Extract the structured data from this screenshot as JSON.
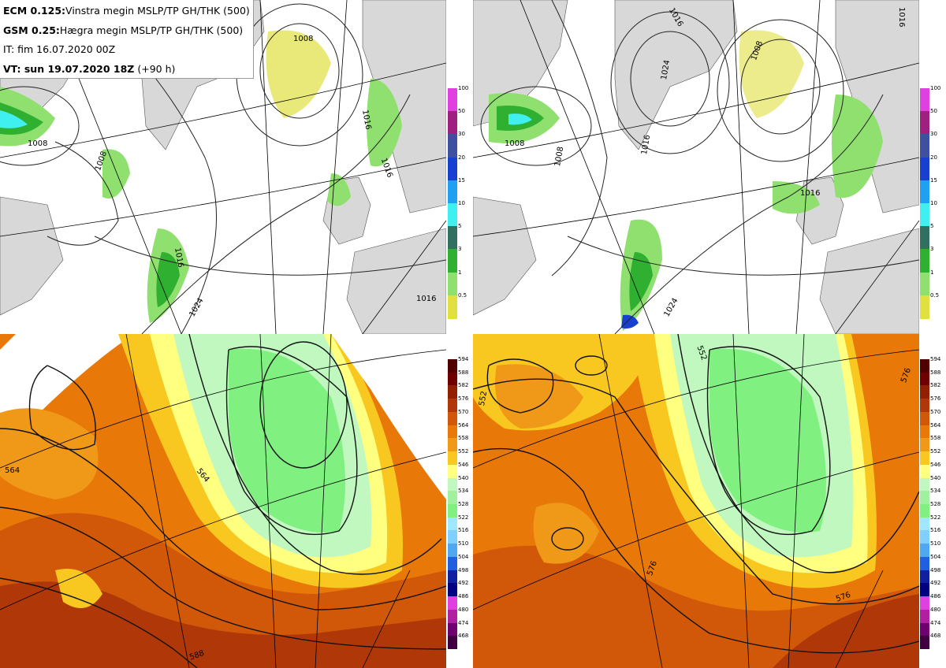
{
  "header": {
    "line1_bold": "ECM 0.125:",
    "line1_text": "Vinstra megin MSLP/TP GH/THK (500)",
    "line2_bold": "GSM 0.25:",
    "line2_text": "Hægra megin MSLP/TP GH/THK (500)",
    "line3_text": "IT: fim 16.07.2020 00Z",
    "line4_bold": "VT: sun 19.07.2020 18Z",
    "line4_text": "(+90 h)"
  },
  "precip_colorbar": {
    "labels": [
      "100",
      "50",
      "30",
      "20",
      "15",
      "10",
      "5",
      "3",
      "1",
      "0.5"
    ],
    "colors": [
      "#e040e0",
      "#a02080",
      "#4050a0",
      "#1840d0",
      "#20a0f0",
      "#40f0f0",
      "#307060",
      "#30b030",
      "#90e070",
      "#e0e040"
    ]
  },
  "thickness_colorbar": {
    "labels": [
      "594",
      "588",
      "582",
      "576",
      "570",
      "564",
      "558",
      "552",
      "546",
      "540",
      "534",
      "528",
      "522",
      "516",
      "510",
      "504",
      "498",
      "492",
      "486",
      "480",
      "474",
      "468"
    ],
    "colors": [
      "#500000",
      "#700000",
      "#902000",
      "#b03808",
      "#d05808",
      "#e87808",
      "#f09818",
      "#f8c820",
      "#ffff80",
      "#c0f8c0",
      "#a0f0a0",
      "#80f080",
      "#a0e8ff",
      "#80d0ff",
      "#50a8f0",
      "#2060e0",
      "#1020a0",
      "#000080",
      "#e040e0",
      "#b020a0",
      "#700070",
      "#400040"
    ]
  },
  "maps": {
    "ecm_mslp_labels": [
      "1008",
      "1008",
      "1008",
      "1016",
      "1016",
      "1016",
      "1016",
      "1024"
    ],
    "gsm_mslp_labels": [
      "1008",
      "1008",
      "1008",
      "1016",
      "1016",
      "1016",
      "1024",
      "1024",
      "1016"
    ],
    "ecm_gh_labels": [
      "564",
      "564",
      "588"
    ],
    "gsm_gh_labels": [
      "552",
      "552",
      "576",
      "576",
      "576"
    ]
  },
  "colors": {
    "land": "#d8d8d8",
    "sea": "#ffffff",
    "contour": "#000000"
  }
}
